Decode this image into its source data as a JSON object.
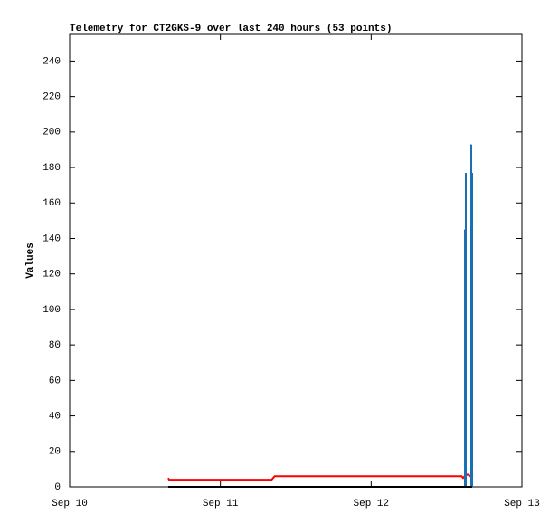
{
  "chart_data": {
    "type": "line",
    "title": "Telemetry for CT2GKS-9 over last 240 hours (53 points)",
    "y_label": "Values",
    "xlim": [
      0,
      3
    ],
    "xticks": [
      {
        "value": 0,
        "label": "Sep 10"
      },
      {
        "value": 1,
        "label": "Sep 11"
      },
      {
        "value": 2,
        "label": "Sep 12"
      },
      {
        "value": 3,
        "label": "Sep 13"
      }
    ],
    "ylim": [
      0,
      255
    ],
    "yticks": [
      0,
      20,
      40,
      60,
      80,
      100,
      120,
      140,
      160,
      180,
      200,
      220,
      240
    ],
    "series": [
      {
        "style": "line",
        "color": "#ff0000",
        "x": [
          0.654,
          0.66,
          1.34,
          1.35,
          1.36,
          2.6,
          2.61,
          2.62,
          2.64,
          2.66,
          2.67
        ],
        "values": [
          5,
          4,
          4,
          5,
          6,
          6,
          5,
          6,
          7,
          6,
          6
        ]
      },
      {
        "style": "impulses",
        "color": "#1a6fb5",
        "x": [
          2.622,
          2.628,
          2.664,
          2.67
        ],
        "values": [
          145,
          177,
          193,
          177
        ]
      },
      {
        "style": "line",
        "color": "#000000",
        "x": [
          0.654,
          2.67
        ],
        "values": [
          0,
          0
        ]
      }
    ]
  }
}
